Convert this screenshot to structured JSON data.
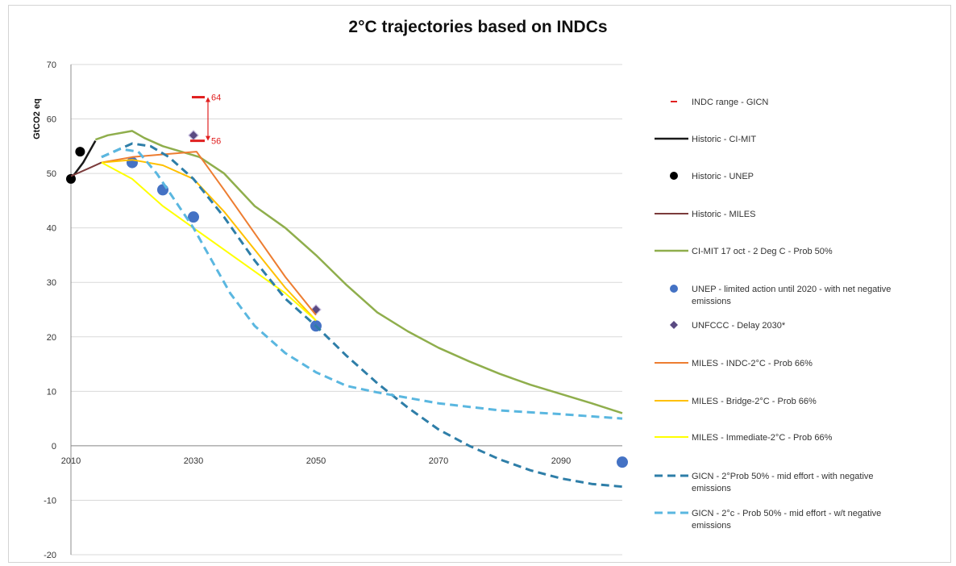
{
  "chart_data": {
    "type": "line",
    "title": "2°C trajectories based on INDCs",
    "xlabel": "",
    "ylabel": "GtCO2 eq",
    "xlim": [
      2010,
      2100
    ],
    "ylim": [
      -20,
      70
    ],
    "xticks": [
      2010,
      2030,
      2050,
      2070,
      2090
    ],
    "yticks": [
      -20,
      -10,
      0,
      10,
      20,
      30,
      40,
      50,
      60,
      70
    ],
    "grid": "horizontal",
    "legend_position": "right",
    "indc_range": {
      "name": "INDC range - GICN",
      "x": 2030,
      "low": 56,
      "high": 64,
      "low_label": "56",
      "high_label": "64",
      "color": "#e02020"
    },
    "series": [
      {
        "name": "Historic - CI-MIT",
        "kind": "line",
        "color": "#1a1a1a",
        "dash": "",
        "width": 2.5,
        "points": [
          [
            2010,
            49
          ],
          [
            2012,
            52
          ],
          [
            2014,
            56
          ]
        ]
      },
      {
        "name": "Historic - UNEP",
        "kind": "dot",
        "color": "#000000",
        "r": 6,
        "points": [
          [
            2010,
            49
          ],
          [
            2011.5,
            54
          ]
        ]
      },
      {
        "name": "Historic - MILES",
        "kind": "line",
        "color": "#7b3b3b",
        "dash": "",
        "width": 2,
        "points": [
          [
            2010,
            49.5
          ],
          [
            2013,
            51
          ],
          [
            2015,
            52
          ]
        ]
      },
      {
        "name": "CI-MIT 17 oct - 2 Deg C - Prob 50%",
        "kind": "line",
        "color": "#8fae4c",
        "dash": "",
        "width": 2.5,
        "points": [
          [
            2014,
            56.2
          ],
          [
            2016,
            57
          ],
          [
            2020,
            57.8
          ],
          [
            2022,
            56.5
          ],
          [
            2025,
            55
          ],
          [
            2028,
            54
          ],
          [
            2031,
            53
          ],
          [
            2035,
            50
          ],
          [
            2040,
            44
          ],
          [
            2045,
            40
          ],
          [
            2050,
            35
          ],
          [
            2055,
            29.5
          ],
          [
            2060,
            24.5
          ],
          [
            2065,
            21
          ],
          [
            2070,
            18
          ],
          [
            2075,
            15.5
          ],
          [
            2080,
            13.2
          ],
          [
            2085,
            11.2
          ],
          [
            2090,
            9.5
          ],
          [
            2095,
            7.8
          ],
          [
            2100,
            6
          ]
        ]
      },
      {
        "name": "UNEP - limited action until 2020 - with net negative emissions",
        "kind": "dot",
        "color": "#4472c4",
        "r": 7,
        "points": [
          [
            2020,
            52
          ],
          [
            2025,
            47
          ],
          [
            2030,
            42
          ],
          [
            2050,
            22
          ],
          [
            2100,
            -3
          ]
        ]
      },
      {
        "name": "UNFCCC - Delay 2030*",
        "kind": "diamond",
        "color": "#5a4a82",
        "r": 6,
        "points": [
          [
            2030,
            57
          ],
          [
            2050,
            25
          ]
        ]
      },
      {
        "name": "MILES - INDC-2°C - Prob 66%",
        "kind": "line",
        "color": "#ed7d31",
        "dash": "",
        "width": 2,
        "points": [
          [
            2015,
            52
          ],
          [
            2020,
            53
          ],
          [
            2025,
            53.5
          ],
          [
            2030.5,
            54
          ],
          [
            2035,
            47
          ],
          [
            2040,
            39
          ],
          [
            2045,
            31
          ],
          [
            2050,
            24
          ]
        ]
      },
      {
        "name": "MILES - Bridge-2°C - Prob 66%",
        "kind": "line",
        "color": "#ffc000",
        "dash": "",
        "width": 2,
        "points": [
          [
            2015,
            52
          ],
          [
            2020,
            52.5
          ],
          [
            2025,
            51.5
          ],
          [
            2030,
            49
          ],
          [
            2035,
            43
          ],
          [
            2040,
            36
          ],
          [
            2045,
            29
          ],
          [
            2050,
            23
          ]
        ]
      },
      {
        "name": "MILES - Immediate-2°C - Prob 66%",
        "kind": "line",
        "color": "#ffff00",
        "dash": "",
        "width": 2,
        "points": [
          [
            2015,
            52
          ],
          [
            2020,
            49
          ],
          [
            2025,
            44
          ],
          [
            2030,
            40
          ],
          [
            2035,
            36
          ],
          [
            2040,
            32
          ],
          [
            2045,
            28
          ],
          [
            2050,
            23
          ]
        ]
      },
      {
        "name": "GICN - 2°Prob 50% - mid effort - with negative emissions",
        "kind": "line",
        "color": "#2e7ea8",
        "dash": "10,6",
        "width": 3,
        "points": [
          [
            2015,
            53
          ],
          [
            2020,
            55.5
          ],
          [
            2023,
            55
          ],
          [
            2026,
            53
          ],
          [
            2030,
            49
          ],
          [
            2035,
            42
          ],
          [
            2040,
            34
          ],
          [
            2045,
            27
          ],
          [
            2050,
            22
          ],
          [
            2055,
            16.5
          ],
          [
            2060,
            11.5
          ],
          [
            2065,
            7
          ],
          [
            2070,
            3
          ],
          [
            2075,
            0
          ],
          [
            2080,
            -2.5
          ],
          [
            2085,
            -4.5
          ],
          [
            2090,
            -6
          ],
          [
            2095,
            -7
          ],
          [
            2100,
            -7.5
          ]
        ]
      },
      {
        "name": "GICN - 2°c - Prob 50% - mid effort - w/t negative emissions",
        "kind": "line",
        "color": "#5ab7e0",
        "dash": "10,6",
        "width": 3,
        "points": [
          [
            2015,
            53
          ],
          [
            2018,
            54.5
          ],
          [
            2021,
            54
          ],
          [
            2024,
            50
          ],
          [
            2027,
            45
          ],
          [
            2030,
            40
          ],
          [
            2033,
            34
          ],
          [
            2036,
            28
          ],
          [
            2040,
            22
          ],
          [
            2045,
            17
          ],
          [
            2050,
            13.5
          ],
          [
            2055,
            11
          ],
          [
            2060,
            9.8
          ],
          [
            2070,
            7.8
          ],
          [
            2080,
            6.5
          ],
          [
            2090,
            5.8
          ],
          [
            2100,
            5
          ]
        ]
      }
    ]
  }
}
